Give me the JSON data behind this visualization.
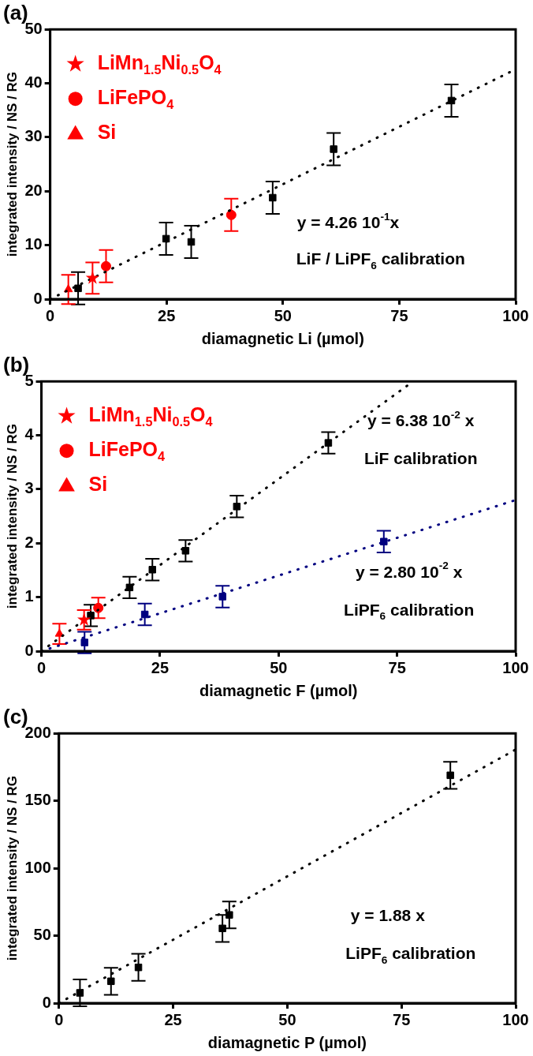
{
  "chart_data": [
    {
      "type": "scatter",
      "title": "(a)",
      "xlabel": "diamagnetic Li (µmol)",
      "ylabel": "integrated intensity / NS / RG",
      "xlim": [
        0,
        100
      ],
      "xticks": [
        0,
        25,
        50,
        75,
        100
      ],
      "ylim": [
        0,
        50
      ],
      "yticks": [
        0,
        10,
        20,
        30,
        40,
        50
      ],
      "legend": "top left",
      "annotations": [
        "y = 4.26 10$^{-1}$x",
        "LiF / LiPF$_{6}$ calibration"
      ],
      "series": [
        {
          "type": "line",
          "x": [
            0,
            100
          ],
          "values": [
            0,
            42.6
          ],
          "color": "#000000",
          "marker": "none",
          "line_style": "dotted"
        },
        {
          "x": [
            6.0,
            24.9,
            30.3,
            47.8,
            60.9,
            86.2
          ],
          "values": [
            2.0,
            11.2,
            10.6,
            18.8,
            27.8,
            36.8
          ],
          "errors": [
            3,
            3,
            3,
            3,
            3,
            3
          ],
          "color": "#000000",
          "marker": "square"
        },
        {
          "name": "LiMn$_{1.5}$Ni$_{0.5}$O$_{4}$",
          "x": [
            9.1
          ],
          "values": [
            3.9
          ],
          "errors": [
            2.9
          ],
          "color": "#ff0000",
          "marker": "star"
        },
        {
          "name": "LiFePO$_{4}$",
          "x": [
            12.0,
            38.9
          ],
          "values": [
            6.1,
            15.6
          ],
          "errors": [
            3,
            3
          ],
          "color": "#ff0000",
          "marker": "circle"
        },
        {
          "name": "Si",
          "x": [
            3.9
          ],
          "values": [
            1.8
          ],
          "errors": [
            2.7
          ],
          "color": "#ff0000",
          "marker": "triangle"
        }
      ]
    },
    {
      "type": "scatter",
      "title": "(b)",
      "xlabel": "diamagnetic F (µmol)",
      "ylabel": "integrated intensity / NS / RG",
      "xlim": [
        0,
        100
      ],
      "xticks": [
        0,
        25,
        50,
        75,
        100
      ],
      "ylim": [
        0,
        5
      ],
      "yticks": [
        0,
        1,
        2,
        3,
        4,
        5
      ],
      "legend": "top left",
      "annotations": [
        "y = 6.38 10$^{-2}$ x",
        "LiF calibration",
        "y = 2.80 10$^{-2}$ x",
        "LiPF$_{6}$ calibration"
      ],
      "series": [
        {
          "type": "line",
          "x": [
            0,
            78.4
          ],
          "values": [
            0,
            5.0
          ],
          "color": "#000000",
          "marker": "none",
          "line_style": "dotted"
        },
        {
          "type": "line",
          "x": [
            0,
            100
          ],
          "values": [
            0,
            2.8
          ],
          "color": "#000080",
          "marker": "none",
          "line_style": "dotted"
        },
        {
          "x": [
            10.4,
            18.6,
            23.4,
            30.4,
            41.2,
            60.5
          ],
          "values": [
            0.66,
            1.18,
            1.51,
            1.86,
            2.68,
            3.86
          ],
          "errors": [
            0.2,
            0.2,
            0.2,
            0.2,
            0.2,
            0.2
          ],
          "color": "#000000",
          "marker": "square"
        },
        {
          "x": [
            9.1,
            21.8,
            38.2,
            72.2
          ],
          "values": [
            0.16,
            0.68,
            1.01,
            2.03
          ],
          "errors": [
            0.2,
            0.2,
            0.2,
            0.2
          ],
          "color": "#000080",
          "marker": "square"
        },
        {
          "name": "LiMn$_{1.5}$Ni$_{0.5}$O$_{4}$",
          "x": [
            9.0
          ],
          "values": [
            0.58
          ],
          "errors": [
            0.18
          ],
          "color": "#ff0000",
          "marker": "star"
        },
        {
          "name": "LiFePO$_{4}$",
          "x": [
            12.0
          ],
          "values": [
            0.8
          ],
          "errors": [
            0.19
          ],
          "color": "#ff0000",
          "marker": "circle"
        },
        {
          "name": "Si",
          "x": [
            3.8
          ],
          "values": [
            0.32
          ],
          "errors": [
            0.19
          ],
          "color": "#ff0000",
          "marker": "triangle"
        }
      ]
    },
    {
      "type": "scatter",
      "title": "(c)",
      "xlabel": "diamagnetic P (µmol)",
      "ylabel": "integrated intensity / NS / RG",
      "xlim": [
        0,
        100
      ],
      "xticks": [
        0,
        25,
        50,
        75,
        100
      ],
      "ylim": [
        0,
        200
      ],
      "yticks": [
        0,
        50,
        100,
        150,
        200
      ],
      "annotations": [
        "y = 1.88 x",
        "LiPF$_{6}$ calibration"
      ],
      "series": [
        {
          "type": "line",
          "x": [
            0,
            100
          ],
          "values": [
            0,
            188
          ],
          "color": "#000000",
          "marker": "none",
          "line_style": "dotted"
        },
        {
          "x": [
            4.6,
            11.4,
            17.4,
            35.8,
            37.3,
            85.7
          ],
          "values": [
            7.6,
            16.2,
            26.5,
            55.4,
            65.4,
            168.9
          ],
          "errors": [
            10,
            10,
            10,
            10,
            10,
            10
          ],
          "color": "#000000",
          "marker": "square"
        }
      ]
    }
  ]
}
